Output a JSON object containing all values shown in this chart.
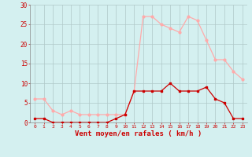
{
  "hours": [
    0,
    1,
    2,
    3,
    4,
    5,
    6,
    7,
    8,
    9,
    10,
    11,
    12,
    13,
    14,
    15,
    16,
    17,
    18,
    19,
    20,
    21,
    22,
    23
  ],
  "wind_avg": [
    1,
    1,
    0,
    0,
    0,
    0,
    0,
    0,
    0,
    1,
    2,
    8,
    8,
    8,
    8,
    10,
    8,
    8,
    8,
    9,
    6,
    5,
    1,
    1
  ],
  "wind_gust": [
    6,
    6,
    3,
    2,
    3,
    2,
    2,
    2,
    2,
    2,
    2,
    8,
    27,
    27,
    25,
    24,
    23,
    27,
    26,
    21,
    16,
    16,
    13,
    11
  ],
  "color_avg": "#cc0000",
  "color_gust": "#ffaaaa",
  "bg_color": "#d4f0f0",
  "grid_color": "#b0c8c8",
  "axis_color": "#cc0000",
  "xlabel": "Vent moyen/en rafales ( km/h )",
  "ylim": [
    0,
    30
  ],
  "yticks": [
    0,
    5,
    10,
    15,
    20,
    25,
    30
  ],
  "label_fontsize": 6.5
}
